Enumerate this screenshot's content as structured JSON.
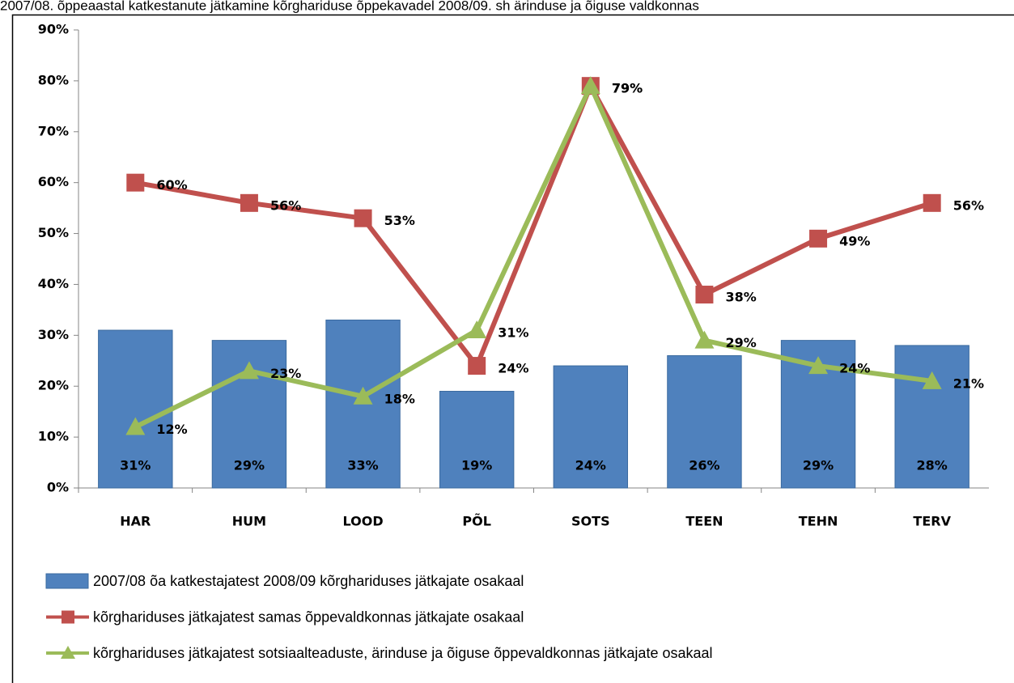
{
  "chart_data": {
    "type": "bar_line",
    "title": "2007/08. õppeaastal katkestanute jätkamine kõrghariduse õppekavadel 2008/09. sh ärinduse ja õiguse valdkonnas",
    "categories": [
      "HAR",
      "HUM",
      "LOOD",
      "PÕL",
      "SOTS",
      "TEEN",
      "TEHN",
      "TERV"
    ],
    "series": [
      {
        "name": "2007/08 õa katkestajatest  2008/09 kõrghariduses jätkajate  osakaal",
        "type": "bar",
        "color": "#4f81bd",
        "values": [
          31,
          29,
          33,
          19,
          24,
          26,
          29,
          28
        ],
        "value_labels": [
          "31%",
          "29%",
          "33%",
          "19%",
          "24%",
          "26%",
          "29%",
          "28%"
        ]
      },
      {
        "name": "kõrghariduses jätkajatest  samas  õppevaldkonnas  jätkajate  osakaal",
        "type": "line",
        "marker": "square",
        "color": "#c0504d",
        "values": [
          60,
          56,
          53,
          24,
          79,
          38,
          49,
          56
        ],
        "value_labels": [
          "60%",
          "56%",
          "53%",
          "24%",
          "79%",
          "38%",
          "49%",
          "56%"
        ]
      },
      {
        "name": "kõrghariduses jätkajatest  sotsiaalteaduste,  ärinduse  ja õiguse  õppevaldkonnas  jätkajate  osakaal",
        "type": "line",
        "marker": "triangle",
        "color": "#9bbb59",
        "values": [
          12,
          23,
          18,
          31,
          79,
          29,
          24,
          21
        ],
        "value_labels": [
          "12%",
          "23%",
          "18%",
          "31%",
          "79%",
          "29%",
          "24%",
          "21%"
        ]
      }
    ],
    "ylim": [
      0,
      90
    ],
    "yticks": [
      {
        "value": 0,
        "label": "0%"
      },
      {
        "value": 10,
        "label": "10%"
      },
      {
        "value": 20,
        "label": "20%"
      },
      {
        "value": 30,
        "label": "30%"
      },
      {
        "value": 40,
        "label": "40%"
      },
      {
        "value": 50,
        "label": "50%"
      },
      {
        "value": 60,
        "label": "60%"
      },
      {
        "value": 70,
        "label": "70%"
      },
      {
        "value": 80,
        "label": "80%"
      },
      {
        "value": 90,
        "label": "90%"
      }
    ],
    "legend": "bottom"
  }
}
